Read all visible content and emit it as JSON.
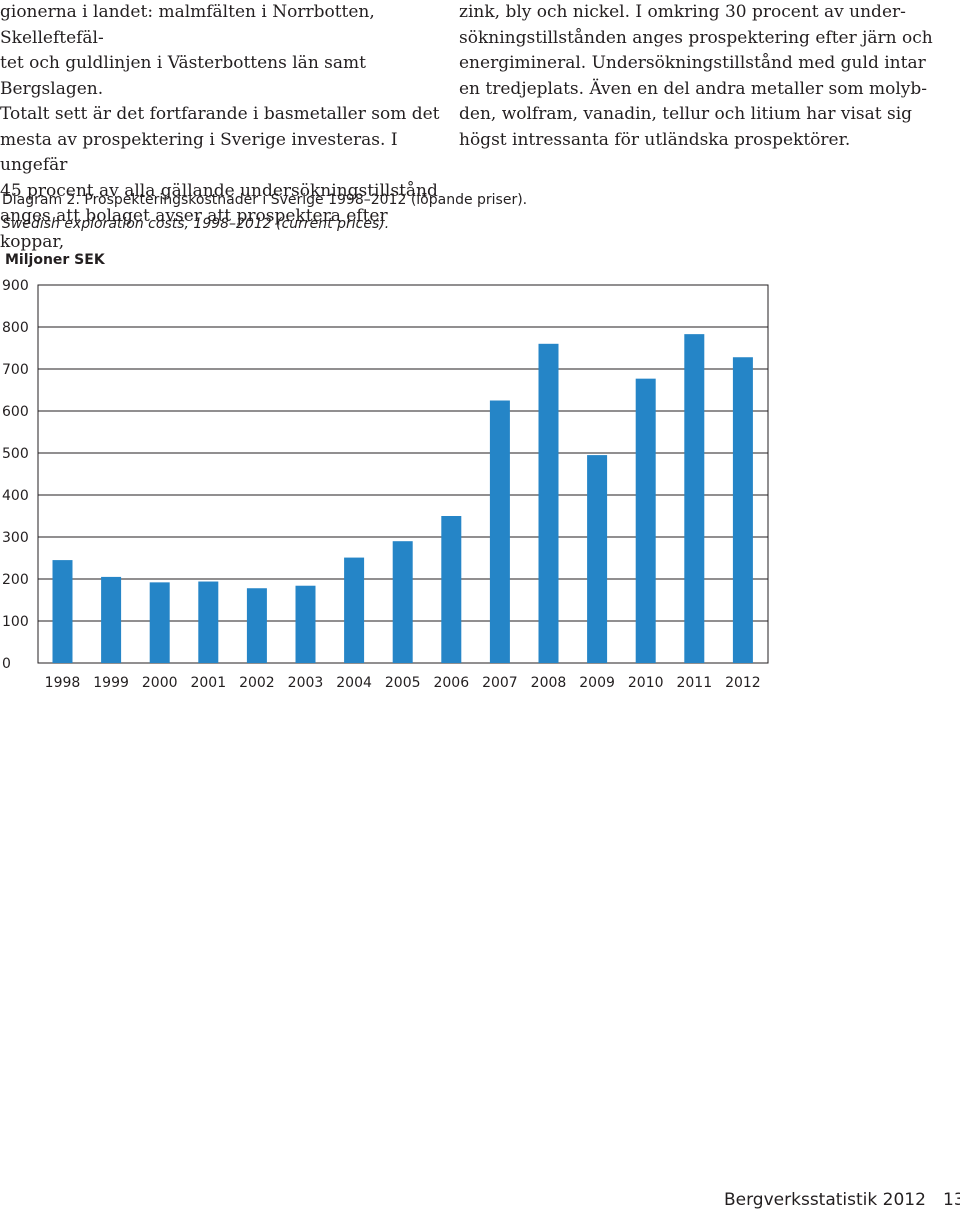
{
  "left_column": {
    "text": "gionerna i landet: malmfälten i Norrbotten, Skelleftefäl-\ntet och guldlinjen i Västerbottens län samt Bergslagen.\n    Totalt sett är det fortfarande i basmetaller som det\nmesta av prospektering i Sverige investeras. I ungefär\n45 procent av alla gällande undersökningstillstånd\nanges att bolaget avser att prospektera efter koppar,"
  },
  "right_column": {
    "text": "zink, bly och nickel. I omkring 30 procent av under-\nsökningstillstånden anges prospektering efter järn och\nenergimineral. Undersökningstillstånd med guld intar\nen tredjeplats. Även en del andra metaller som molyb-\nden, wolfram, vanadin, tellur och litium har visat sig\nhögst intressanta för utländska prospektörer."
  },
  "caption": {
    "swedish": "Diagram 2. Prospekteringskostnader i Sverige 1998–2012 (löpande priser).",
    "english": "Swedish exploration costs, 1998–2012 (current prices)."
  },
  "chart_data": {
    "type": "bar",
    "ylabel": "Miljoner SEK",
    "ylim": [
      0,
      900
    ],
    "yticks": [
      "0",
      "100",
      "200",
      "300",
      "400",
      "500",
      "600",
      "700",
      "800",
      "900"
    ],
    "grid": true,
    "categories": [
      "1998",
      "1999",
      "2000",
      "2001",
      "2002",
      "2003",
      "2004",
      "2005",
      "2006",
      "2007",
      "2008",
      "2009",
      "2010",
      "2011",
      "2012"
    ],
    "values": [
      245,
      205,
      192,
      194,
      178,
      184,
      251,
      290,
      350,
      625,
      760,
      495,
      677,
      783,
      728
    ],
    "bar_color": "#2585c7"
  },
  "footer": {
    "title": "Bergverksstatistik 2012",
    "page_number": "13"
  }
}
